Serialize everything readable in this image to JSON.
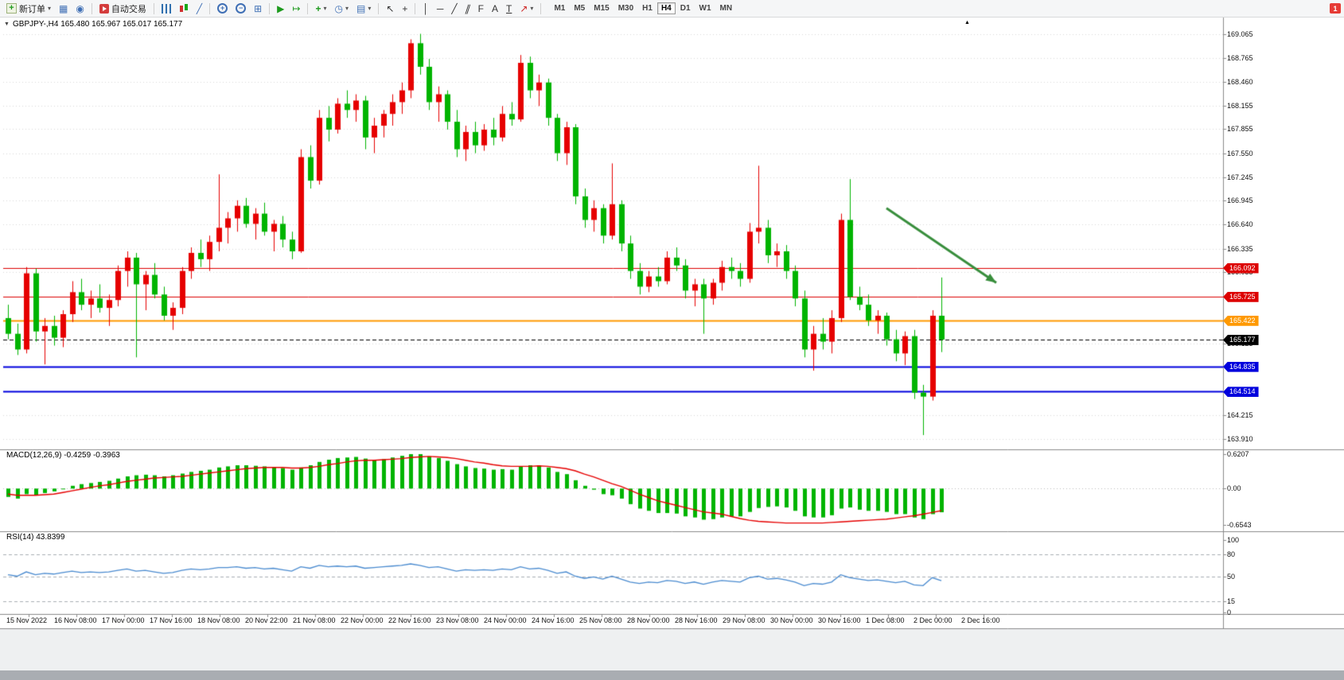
{
  "toolbar": {
    "new_order": "新订单",
    "auto_trading": "自动交易",
    "timeframes": [
      "M1",
      "M5",
      "M15",
      "M30",
      "H1",
      "H4",
      "D1",
      "W1",
      "MN"
    ],
    "active_timeframe": "H4",
    "notification_badge": "1",
    "icons": {
      "dropdown": "▾",
      "plus": "+",
      "minus": "−",
      "profiles": "▦",
      "alerts": "◉",
      "line_chart": "╱",
      "tile": "⊞",
      "auto_scroll": "▶",
      "chart_shift": "↦",
      "clock": "◷",
      "template": "▤",
      "cursor": "↖",
      "crosshair": "+",
      "vline": "│",
      "hline": "─",
      "trendline": "╱",
      "channel": "∥",
      "fibonacci": "F",
      "text": "A",
      "label": "T",
      "arrows": "↗",
      "collapse": "▼",
      "shift_marker": "▲"
    }
  },
  "chart": {
    "title": "GBPJPY-,H4  165.480 165.967 165.017 165.177",
    "symbol": "GBPJPY-",
    "period": "H4"
  },
  "colors": {
    "bull": "#e60000",
    "bear": "#00b400",
    "macd_histogram": "#00b400",
    "macd_signal": "#e60000",
    "rsi": "#4a8bd0",
    "grid": "#d9d9d9",
    "arrow": "#388e3c",
    "frame": "#8a8a8a"
  },
  "chart_data": {
    "type": "candlestick",
    "symbol": "GBPJPY-",
    "timeframe": "H4",
    "current_bar": {
      "open": 165.48,
      "high": 165.967,
      "low": 165.017,
      "close": 165.177
    },
    "y_axis": {
      "min": 163.91,
      "max": 169.065,
      "ticks": [
        169.065,
        168.765,
        168.46,
        168.155,
        167.855,
        167.55,
        167.245,
        166.945,
        166.64,
        166.335,
        166.035,
        165.123,
        164.215,
        163.91
      ]
    },
    "levels": [
      {
        "price": 166.092,
        "color": "#dd0000",
        "style": "solid",
        "width": 1,
        "badge": true
      },
      {
        "price": 165.725,
        "color": "#dd0000",
        "style": "solid",
        "width": 1,
        "badge": true
      },
      {
        "price": 165.422,
        "color": "#ff9900",
        "style": "solid",
        "width": 2,
        "badge": true
      },
      {
        "price": 165.177,
        "color": "#000000",
        "style": "dash",
        "width": 1,
        "badge": true
      },
      {
        "price": 164.835,
        "color": "#0000dd",
        "style": "solid",
        "width": 2,
        "badge": true
      },
      {
        "price": 164.514,
        "color": "#0000dd",
        "style": "solid",
        "width": 2,
        "badge": true
      }
    ],
    "annotations": [
      {
        "type": "arrow",
        "from_index": 96,
        "from_price": 166.85,
        "to_index": 108,
        "to_price": 165.9,
        "color": "#388e3c"
      }
    ],
    "candles": [
      [
        165.45,
        165.62,
        165.18,
        165.25
      ],
      [
        165.25,
        165.38,
        164.98,
        165.05
      ],
      [
        165.05,
        166.1,
        165.0,
        166.02
      ],
      [
        166.02,
        166.08,
        165.15,
        165.28
      ],
      [
        165.28,
        165.45,
        164.86,
        165.35
      ],
      [
        165.35,
        165.48,
        165.1,
        165.2
      ],
      [
        165.2,
        165.55,
        165.08,
        165.5
      ],
      [
        165.5,
        165.92,
        165.4,
        165.78
      ],
      [
        165.78,
        165.95,
        165.55,
        165.62
      ],
      [
        165.62,
        165.8,
        165.45,
        165.7
      ],
      [
        165.7,
        165.88,
        165.52,
        165.58
      ],
      [
        165.58,
        165.75,
        165.35,
        165.68
      ],
      [
        165.68,
        166.12,
        165.6,
        166.05
      ],
      [
        166.05,
        166.3,
        165.85,
        166.22
      ],
      [
        166.22,
        166.28,
        164.95,
        165.88
      ],
      [
        165.88,
        166.05,
        165.55,
        166.0
      ],
      [
        166.0,
        166.15,
        165.7,
        165.75
      ],
      [
        165.75,
        165.85,
        165.42,
        165.48
      ],
      [
        165.48,
        165.65,
        165.3,
        165.58
      ],
      [
        165.58,
        166.1,
        165.5,
        166.05
      ],
      [
        166.05,
        166.35,
        165.95,
        166.28
      ],
      [
        166.28,
        166.45,
        166.1,
        166.2
      ],
      [
        166.2,
        166.5,
        166.05,
        166.42
      ],
      [
        166.42,
        167.28,
        166.3,
        166.6
      ],
      [
        166.6,
        166.8,
        166.4,
        166.72
      ],
      [
        166.72,
        166.95,
        166.55,
        166.88
      ],
      [
        166.88,
        166.98,
        166.6,
        166.65
      ],
      [
        166.65,
        166.85,
        166.45,
        166.78
      ],
      [
        166.78,
        166.92,
        166.5,
        166.55
      ],
      [
        166.55,
        166.7,
        166.3,
        166.65
      ],
      [
        166.65,
        166.75,
        166.35,
        166.45
      ],
      [
        166.45,
        166.55,
        166.2,
        166.3
      ],
      [
        166.3,
        167.6,
        166.28,
        167.5
      ],
      [
        167.5,
        167.65,
        167.1,
        167.2
      ],
      [
        167.2,
        168.1,
        167.15,
        168.0
      ],
      [
        168.0,
        168.15,
        167.7,
        167.85
      ],
      [
        167.85,
        168.25,
        167.8,
        168.18
      ],
      [
        168.18,
        168.35,
        168.0,
        168.1
      ],
      [
        168.1,
        168.3,
        167.95,
        168.22
      ],
      [
        168.22,
        168.28,
        167.6,
        167.75
      ],
      [
        167.75,
        168.0,
        167.55,
        167.9
      ],
      [
        167.9,
        168.1,
        167.75,
        168.05
      ],
      [
        168.05,
        168.3,
        167.9,
        168.2
      ],
      [
        168.2,
        168.45,
        168.05,
        168.35
      ],
      [
        168.35,
        169.0,
        168.25,
        168.95
      ],
      [
        168.95,
        169.07,
        168.55,
        168.65
      ],
      [
        168.65,
        168.75,
        168.1,
        168.2
      ],
      [
        168.2,
        168.4,
        167.95,
        168.3
      ],
      [
        168.3,
        168.35,
        167.85,
        167.95
      ],
      [
        167.95,
        168.1,
        167.5,
        167.6
      ],
      [
        167.6,
        167.9,
        167.45,
        167.82
      ],
      [
        167.82,
        167.95,
        167.55,
        167.65
      ],
      [
        167.65,
        167.92,
        167.58,
        167.85
      ],
      [
        167.85,
        168.0,
        167.65,
        167.75
      ],
      [
        167.75,
        168.15,
        167.7,
        168.05
      ],
      [
        168.05,
        168.2,
        167.9,
        167.98
      ],
      [
        167.98,
        168.8,
        167.95,
        168.7
      ],
      [
        168.7,
        168.78,
        168.25,
        168.35
      ],
      [
        168.35,
        168.55,
        168.15,
        168.45
      ],
      [
        168.45,
        168.5,
        167.9,
        168.0
      ],
      [
        168.0,
        168.05,
        167.45,
        167.55
      ],
      [
        167.55,
        167.95,
        167.4,
        167.88
      ],
      [
        167.88,
        167.92,
        166.9,
        167.0
      ],
      [
        167.0,
        167.1,
        166.6,
        166.7
      ],
      [
        166.7,
        166.95,
        166.55,
        166.85
      ],
      [
        166.85,
        166.9,
        166.4,
        166.5
      ],
      [
        166.5,
        167.42,
        166.45,
        166.9
      ],
      [
        166.9,
        166.95,
        166.3,
        166.4
      ],
      [
        166.4,
        166.5,
        165.95,
        166.05
      ],
      [
        166.05,
        166.15,
        165.75,
        165.85
      ],
      [
        165.85,
        166.05,
        165.78,
        165.98
      ],
      [
        165.98,
        166.1,
        165.85,
        165.92
      ],
      [
        165.92,
        166.3,
        165.88,
        166.22
      ],
      [
        166.22,
        166.35,
        166.05,
        166.12
      ],
      [
        166.12,
        166.2,
        165.7,
        165.8
      ],
      [
        165.8,
        165.95,
        165.6,
        165.88
      ],
      [
        165.88,
        165.95,
        165.25,
        165.7
      ],
      [
        165.7,
        165.95,
        165.62,
        165.9
      ],
      [
        165.9,
        166.18,
        165.8,
        166.1
      ],
      [
        166.1,
        166.22,
        165.95,
        166.05
      ],
      [
        166.05,
        166.15,
        165.85,
        165.95
      ],
      [
        165.95,
        166.66,
        165.9,
        166.55
      ],
      [
        166.55,
        167.39,
        166.4,
        166.6
      ],
      [
        166.6,
        166.7,
        166.15,
        166.25
      ],
      [
        166.25,
        166.4,
        166.1,
        166.3
      ],
      [
        166.3,
        166.38,
        165.95,
        166.05
      ],
      [
        166.05,
        166.12,
        165.6,
        165.7
      ],
      [
        165.7,
        165.8,
        164.95,
        165.05
      ],
      [
        165.05,
        165.35,
        164.78,
        165.25
      ],
      [
        165.25,
        165.45,
        165.05,
        165.15
      ],
      [
        165.15,
        165.55,
        165.0,
        165.45
      ],
      [
        165.45,
        166.78,
        165.4,
        166.7
      ],
      [
        166.7,
        167.22,
        165.68,
        165.72
      ],
      [
        165.72,
        165.85,
        165.55,
        165.62
      ],
      [
        165.62,
        165.75,
        165.35,
        165.42
      ],
      [
        165.42,
        165.55,
        165.25,
        165.48
      ],
      [
        165.48,
        165.52,
        165.1,
        165.18
      ],
      [
        165.18,
        165.3,
        164.9,
        165.0
      ],
      [
        165.0,
        165.28,
        164.85,
        165.22
      ],
      [
        165.22,
        165.3,
        164.42,
        164.5
      ],
      [
        164.5,
        164.6,
        163.96,
        164.45
      ],
      [
        164.45,
        165.55,
        164.4,
        165.48
      ],
      [
        165.48,
        165.967,
        165.017,
        165.177
      ]
    ],
    "macd": {
      "label": "MACD(12,26,9) -0.4259 -0.3963",
      "values": {
        "macd": -0.4259,
        "signal": -0.3963
      },
      "range": [
        -0.6543,
        0.6207
      ],
      "axis_ticks": [
        0.6207,
        0,
        -0.6543
      ],
      "histogram": [
        -0.15,
        -0.18,
        -0.1,
        -0.12,
        -0.08,
        -0.05,
        0.0,
        0.05,
        0.08,
        0.1,
        0.12,
        0.14,
        0.18,
        0.22,
        0.24,
        0.25,
        0.24,
        0.22,
        0.24,
        0.27,
        0.3,
        0.32,
        0.34,
        0.38,
        0.4,
        0.42,
        0.42,
        0.41,
        0.4,
        0.39,
        0.37,
        0.34,
        0.38,
        0.42,
        0.48,
        0.52,
        0.55,
        0.56,
        0.57,
        0.54,
        0.52,
        0.53,
        0.56,
        0.59,
        0.62,
        0.62,
        0.58,
        0.55,
        0.5,
        0.44,
        0.4,
        0.37,
        0.36,
        0.34,
        0.35,
        0.34,
        0.4,
        0.42,
        0.42,
        0.38,
        0.3,
        0.26,
        0.15,
        0.05,
        -0.02,
        -0.1,
        -0.12,
        -0.18,
        -0.28,
        -0.36,
        -0.4,
        -0.44,
        -0.44,
        -0.45,
        -0.5,
        -0.52,
        -0.56,
        -0.55,
        -0.52,
        -0.5,
        -0.5,
        -0.42,
        -0.35,
        -0.33,
        -0.32,
        -0.34,
        -0.4,
        -0.5,
        -0.52,
        -0.52,
        -0.48,
        -0.36,
        -0.34,
        -0.38,
        -0.4,
        -0.4,
        -0.42,
        -0.46,
        -0.46,
        -0.52,
        -0.55,
        -0.46,
        -0.4259
      ],
      "signal_line": [
        -0.1,
        -0.12,
        -0.12,
        -0.12,
        -0.11,
        -0.1,
        -0.07,
        -0.04,
        -0.01,
        0.02,
        0.05,
        0.07,
        0.1,
        0.13,
        0.15,
        0.17,
        0.19,
        0.2,
        0.21,
        0.22,
        0.24,
        0.26,
        0.28,
        0.3,
        0.32,
        0.34,
        0.36,
        0.37,
        0.38,
        0.38,
        0.38,
        0.37,
        0.37,
        0.38,
        0.4,
        0.43,
        0.45,
        0.48,
        0.5,
        0.51,
        0.51,
        0.52,
        0.53,
        0.54,
        0.56,
        0.57,
        0.58,
        0.57,
        0.56,
        0.54,
        0.51,
        0.48,
        0.46,
        0.43,
        0.41,
        0.4,
        0.4,
        0.4,
        0.41,
        0.4,
        0.38,
        0.36,
        0.32,
        0.26,
        0.21,
        0.15,
        0.09,
        0.04,
        -0.03,
        -0.1,
        -0.16,
        -0.22,
        -0.26,
        -0.3,
        -0.34,
        -0.38,
        -0.42,
        -0.44,
        -0.46,
        -0.5,
        -0.54,
        -0.57,
        -0.59,
        -0.6,
        -0.61,
        -0.62,
        -0.62,
        -0.62,
        -0.62,
        -0.62,
        -0.61,
        -0.6,
        -0.59,
        -0.58,
        -0.57,
        -0.56,
        -0.55,
        -0.53,
        -0.51,
        -0.49,
        -0.46,
        -0.43,
        -0.3963
      ]
    },
    "rsi": {
      "label": "RSI(14) 43.8399",
      "value": 43.8399,
      "range": [
        0,
        100
      ],
      "levels": [
        15,
        50,
        80
      ],
      "axis_ticks": [
        100,
        80,
        50,
        15,
        0
      ],
      "values": [
        52,
        50,
        56,
        52,
        54,
        53,
        55,
        57,
        55,
        56,
        55,
        56,
        58,
        60,
        57,
        58,
        56,
        54,
        55,
        58,
        60,
        59,
        60,
        62,
        62,
        63,
        61,
        62,
        60,
        61,
        59,
        57,
        63,
        61,
        65,
        63,
        64,
        63,
        64,
        61,
        62,
        63,
        64,
        65,
        67,
        65,
        62,
        63,
        60,
        57,
        59,
        58,
        59,
        58,
        60,
        59,
        63,
        60,
        61,
        58,
        54,
        56,
        50,
        47,
        49,
        46,
        50,
        46,
        42,
        40,
        42,
        41,
        44,
        43,
        40,
        42,
        39,
        42,
        44,
        43,
        42,
        48,
        50,
        46,
        47,
        45,
        42,
        37,
        40,
        39,
        42,
        52,
        48,
        46,
        44,
        45,
        43,
        41,
        43,
        38,
        37,
        48,
        43.84
      ]
    },
    "x_axis": {
      "labels": [
        "15 Nov 2022",
        "16 Nov 08:00",
        "17 Nov 00:00",
        "17 Nov 16:00",
        "18 Nov 08:00",
        "20 Nov 22:00",
        "21 Nov 08:00",
        "22 Nov 00:00",
        "22 Nov 16:00",
        "23 Nov 08:00",
        "24 Nov 00:00",
        "24 Nov 16:00",
        "25 Nov 08:00",
        "28 Nov 00:00",
        "28 Nov 16:00",
        "29 Nov 08:00",
        "30 Nov 00:00",
        "30 Nov 16:00",
        "1 Dec 08:00",
        "2 Dec 00:00",
        "2 Dec 16:00"
      ]
    }
  }
}
